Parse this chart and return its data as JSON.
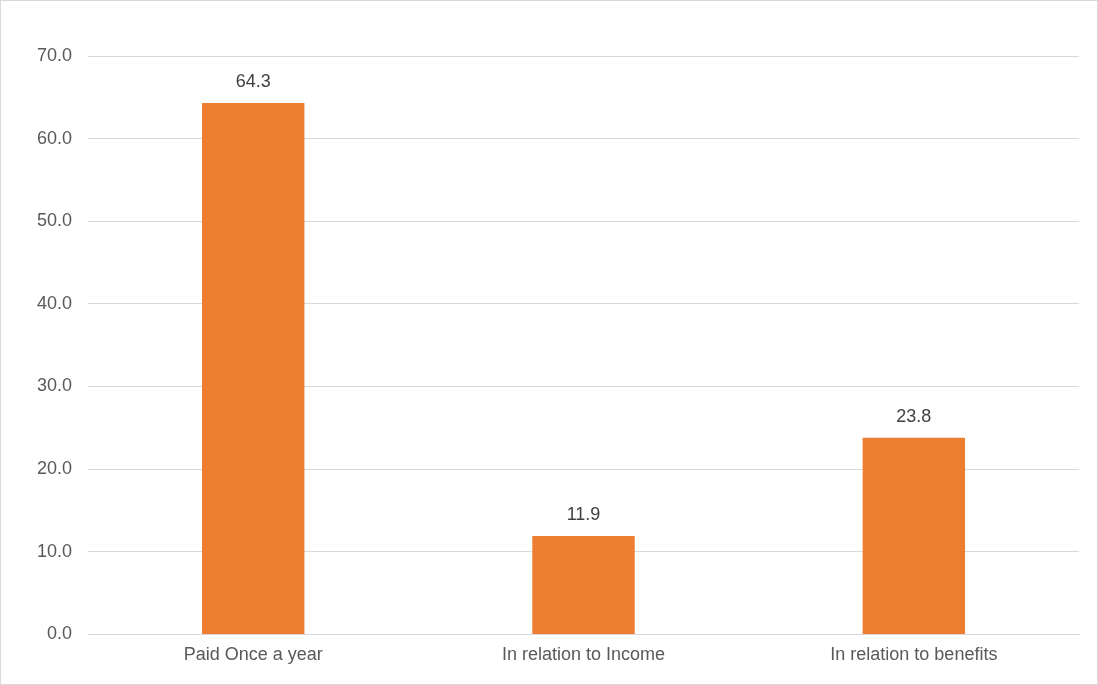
{
  "chart_data": {
    "type": "bar",
    "categories": [
      "Paid Once a year",
      "In relation to Income",
      "In relation to benefits"
    ],
    "values": [
      64.3,
      11.9,
      23.8
    ],
    "color": "#ed7d31",
    "ylim": [
      0,
      70
    ],
    "yticks": [
      {
        "value": 0,
        "label": "0.0"
      },
      {
        "value": 10,
        "label": "10.0"
      },
      {
        "value": 20,
        "label": "20.0"
      },
      {
        "value": 30,
        "label": "30.0"
      },
      {
        "value": 40,
        "label": "40.0"
      },
      {
        "value": 50,
        "label": "50.0"
      },
      {
        "value": 60,
        "label": "60.0"
      },
      {
        "value": 70,
        "label": "70.0"
      }
    ],
    "grid": "y",
    "data_labels": true
  }
}
